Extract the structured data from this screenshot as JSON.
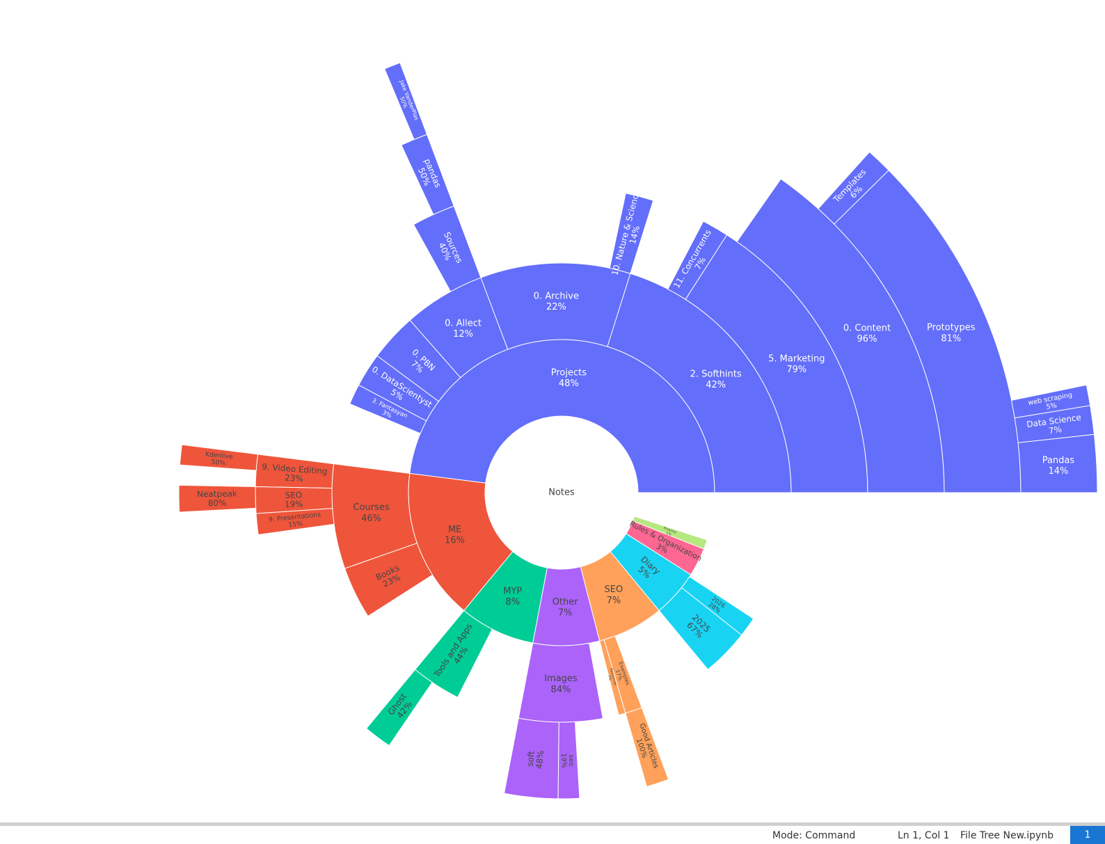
{
  "chart_data": {
    "type": "sunburst",
    "root_label": "Notes",
    "nodes": [
      {
        "label": "Projects",
        "value": 48,
        "value_label": "48%",
        "color": "#636efa",
        "label_color": "#ffffff",
        "children": [
          {
            "label": "2. Softhints",
            "value": 42,
            "value_label": "42%",
            "children": [
              {
                "label": "5. Marketing",
                "value": 79,
                "value_label": "79%",
                "children": [
                  {
                    "label": "0. Content",
                    "value": 96,
                    "value_label": "96%",
                    "children": [
                      {
                        "label": "Prototypes",
                        "value": 81,
                        "value_label": "81%",
                        "children": [
                          {
                            "label": "Pandas",
                            "value": 14,
                            "value_label": "14%"
                          },
                          {
                            "label": "Data Science",
                            "value": 7,
                            "value_label": "7%"
                          },
                          {
                            "label": "web scraping",
                            "value": 5,
                            "value_label": "5%"
                          }
                        ]
                      },
                      {
                        "label": "Templates",
                        "value": 6,
                        "value_label": "6%"
                      }
                    ]
                  }
                ]
              },
              {
                "label": "11. Concurrents",
                "value": 7,
                "value_label": "7%"
              }
            ]
          },
          {
            "label": "0. Archive",
            "value": 22,
            "value_label": "22%",
            "children": [
              {
                "label": "10. Nature & Science",
                "value": 14,
                "value_label": "14%"
              }
            ]
          },
          {
            "label": "0. Allect",
            "value": 12,
            "value_label": "12%",
            "children": [
              {
                "label": "Sources",
                "value": 40,
                "value_label": "40%",
                "children": [
                  {
                    "label": "pandas",
                    "value": 50,
                    "value_label": "50%",
                    "children": [
                      {
                        "label": "Jake VanderPlas",
                        "value": 50,
                        "value_label": "50%"
                      }
                    ]
                  }
                ]
              }
            ]
          },
          {
            "label": "0. PBN",
            "value": 7,
            "value_label": "7%"
          },
          {
            "label": "0. DataScientyst",
            "value": 5,
            "value_label": "5%"
          },
          {
            "label": "3. Fantasyan",
            "value": 3,
            "value_label": "3%"
          }
        ]
      },
      {
        "label": "ME",
        "value": 16,
        "value_label": "16%",
        "color": "#ef553b",
        "label_color": "#444444",
        "children": [
          {
            "label": "Courses",
            "value": 46,
            "value_label": "46%",
            "children": [
              {
                "label": "9. Video Editing",
                "value": 23,
                "value_label": "23%",
                "children": [
                  {
                    "label": "Kdenlive",
                    "value": 50,
                    "value_label": "50%"
                  }
                ]
              },
              {
                "label": "SEO",
                "value": 19,
                "value_label": "19%",
                "children": [
                  {
                    "label": "Neatpeak",
                    "value": 80,
                    "value_label": "80%"
                  }
                ]
              },
              {
                "label": "9. Presentations",
                "value": 15,
                "value_label": "15%"
              }
            ]
          },
          {
            "label": "Books",
            "value": 23,
            "value_label": "23%"
          }
        ]
      },
      {
        "label": "MYP",
        "value": 8,
        "value_label": "8%",
        "color": "#00cc96",
        "label_color": "#444444",
        "children": [
          {
            "label": "Tools and Apps",
            "value": 44,
            "value_label": "44%",
            "children": [
              {
                "label": "Ghost",
                "value": 42,
                "value_label": "42%"
              }
            ]
          }
        ]
      },
      {
        "label": "Other",
        "value": 7,
        "value_label": "7%",
        "color": "#ab63fa",
        "label_color": "#444444",
        "children": [
          {
            "label": "Images",
            "value": 84,
            "value_label": "84%",
            "children": [
              {
                "label": "soft",
                "value": 48,
                "value_label": "48%"
              },
              {
                "label": "seo",
                "value": 19,
                "value_label": "19%"
              }
            ]
          }
        ]
      },
      {
        "label": "SEO",
        "value": 7,
        "value_label": "7%",
        "color": "#ffa15a",
        "label_color": "#444444",
        "children": [
          {
            "label": "Resources",
            "value": 7,
            "value_label": "7%"
          },
          {
            "label": "Examples",
            "value": 17,
            "value_label": "17%",
            "children": [
              {
                "label": "Good Articles",
                "value": 100,
                "value_label": "100%"
              }
            ]
          }
        ]
      },
      {
        "label": "Diary",
        "value": 5,
        "value_label": "5%",
        "color": "#19d3f3",
        "label_color": "#444444",
        "children": [
          {
            "label": "2025",
            "value": 67,
            "value_label": "67%"
          },
          {
            "label": "2026",
            "value": 28,
            "value_label": "28%"
          }
        ]
      },
      {
        "label": "Rules & Organization",
        "value": 3,
        "value_label": "3%",
        "color": "#ff6692",
        "label_color": "#444444"
      },
      {
        "label": "Finance",
        "value": 1,
        "value_label": "1%",
        "color": "#b6e880",
        "label_color": "#444444"
      }
    ]
  },
  "status_bar": {
    "mode": "Mode: Command",
    "position": "Ln 1, Col 1",
    "file": "File Tree New.ipynb",
    "badge": "1"
  }
}
